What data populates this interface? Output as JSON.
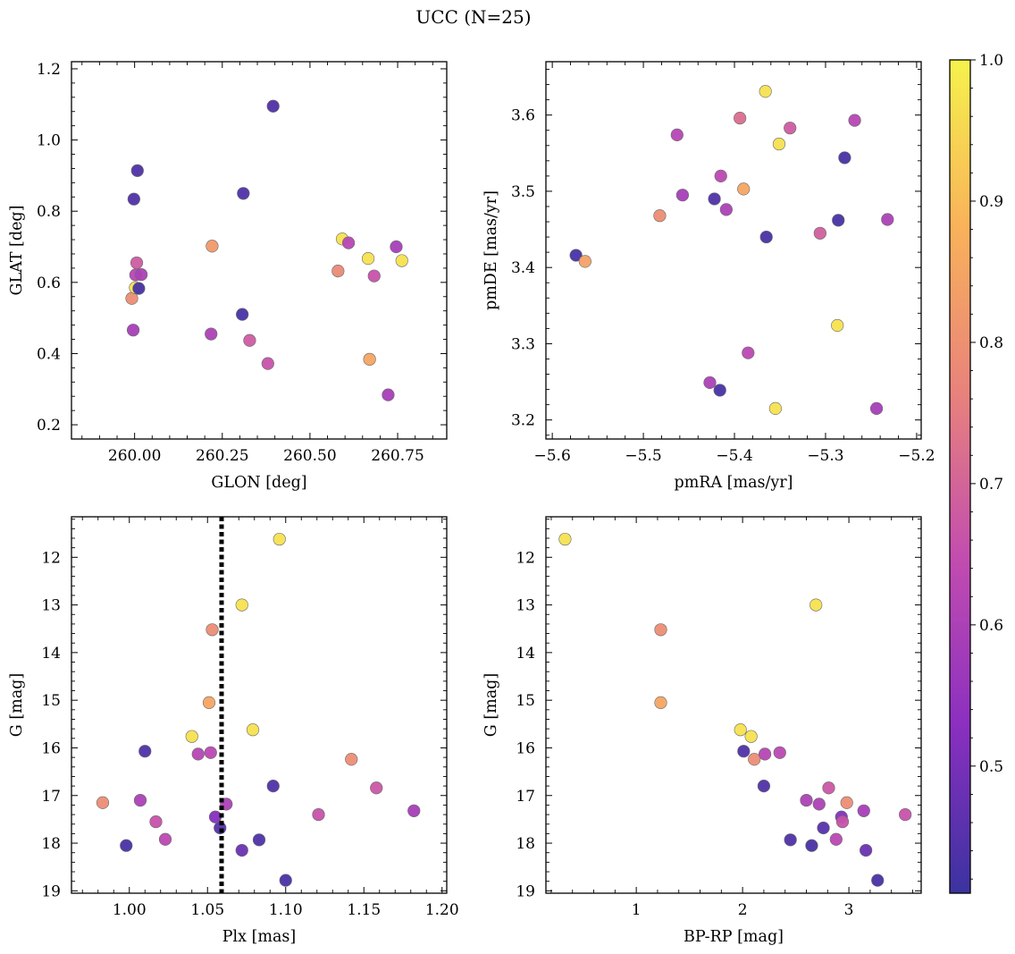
{
  "figure": {
    "title": "UCC (N=25)"
  },
  "colorbar": {
    "range": [
      0.41,
      1.0
    ],
    "ticks": [
      0.5,
      0.6,
      0.7,
      0.8,
      0.9,
      1.0
    ],
    "tick_labels": [
      "0.5",
      "0.6",
      "0.7",
      "0.8",
      "0.9",
      "1.0"
    ],
    "colormap": "plasma",
    "stops": [
      "#3b33a0",
      "#8a2fc0",
      "#c24cb0",
      "#e8827c",
      "#f9b25a",
      "#f5f24c"
    ]
  },
  "chart_data": [
    {
      "type": "scatter",
      "xlabel": "GLON [deg]",
      "ylabel": "GLAT [deg]",
      "xlim": [
        259.82,
        260.89
      ],
      "ylim": [
        0.16,
        1.22
      ],
      "y_inverted": false,
      "xticks": [
        260.0,
        260.25,
        260.5,
        260.75
      ],
      "xtick_labels": [
        "260.00",
        "260.25",
        "260.50",
        "260.75"
      ],
      "yticks": [
        0.2,
        0.4,
        0.6,
        0.8,
        1.0,
        1.2
      ],
      "ytick_labels": [
        "0.2",
        "0.4",
        "0.6",
        "0.8",
        "1.0",
        "1.2"
      ],
      "points": [
        {
          "x": 259.992,
          "y": 0.555,
          "c": 0.79
        },
        {
          "x": 259.996,
          "y": 0.466,
          "c": 0.59
        },
        {
          "x": 259.998,
          "y": 0.834,
          "c": 0.44
        },
        {
          "x": 260.002,
          "y": 0.585,
          "c": 0.97
        },
        {
          "x": 260.003,
          "y": 0.621,
          "c": 0.62
        },
        {
          "x": 260.006,
          "y": 0.655,
          "c": 0.68
        },
        {
          "x": 260.008,
          "y": 0.914,
          "c": 0.44
        },
        {
          "x": 260.012,
          "y": 0.583,
          "c": 0.43
        },
        {
          "x": 260.019,
          "y": 0.622,
          "c": 0.6
        },
        {
          "x": 260.218,
          "y": 0.455,
          "c": 0.6
        },
        {
          "x": 260.221,
          "y": 0.702,
          "c": 0.82
        },
        {
          "x": 260.307,
          "y": 0.51,
          "c": 0.43
        },
        {
          "x": 260.31,
          "y": 0.85,
          "c": 0.44
        },
        {
          "x": 260.328,
          "y": 0.437,
          "c": 0.68
        },
        {
          "x": 260.38,
          "y": 0.372,
          "c": 0.66
        },
        {
          "x": 260.395,
          "y": 1.095,
          "c": 0.44
        },
        {
          "x": 260.58,
          "y": 0.632,
          "c": 0.78
        },
        {
          "x": 260.592,
          "y": 0.722,
          "c": 0.97
        },
        {
          "x": 260.61,
          "y": 0.711,
          "c": 0.62
        },
        {
          "x": 260.666,
          "y": 0.667,
          "c": 0.97
        },
        {
          "x": 260.67,
          "y": 0.384,
          "c": 0.85
        },
        {
          "x": 260.683,
          "y": 0.618,
          "c": 0.66
        },
        {
          "x": 260.723,
          "y": 0.284,
          "c": 0.59
        },
        {
          "x": 260.746,
          "y": 0.7,
          "c": 0.59
        },
        {
          "x": 260.762,
          "y": 0.661,
          "c": 0.97
        }
      ]
    },
    {
      "type": "scatter",
      "xlabel": "pmRA [mas/yr]",
      "ylabel": "pmDE [mas/yr]",
      "xlim": [
        -5.607,
        -5.195
      ],
      "ylim": [
        3.175,
        3.67
      ],
      "y_inverted": false,
      "xticks": [
        -5.6,
        -5.5,
        -5.4,
        -5.3,
        -5.2
      ],
      "xtick_labels": [
        "−5.6",
        "−5.5",
        "−5.4",
        "−5.3",
        "−5.2"
      ],
      "yticks": [
        3.2,
        3.3,
        3.4,
        3.5,
        3.6
      ],
      "ytick_labels": [
        "3.2",
        "3.3",
        "3.4",
        "3.5",
        "3.6"
      ],
      "points": [
        {
          "x": -5.574,
          "y": 3.416,
          "c": 0.43
        },
        {
          "x": -5.564,
          "y": 3.408,
          "c": 0.84
        },
        {
          "x": -5.482,
          "y": 3.468,
          "c": 0.79
        },
        {
          "x": -5.463,
          "y": 3.574,
          "c": 0.62
        },
        {
          "x": -5.457,
          "y": 3.495,
          "c": 0.59
        },
        {
          "x": -5.427,
          "y": 3.249,
          "c": 0.6
        },
        {
          "x": -5.422,
          "y": 3.49,
          "c": 0.44
        },
        {
          "x": -5.415,
          "y": 3.52,
          "c": 0.63
        },
        {
          "x": -5.416,
          "y": 3.239,
          "c": 0.43
        },
        {
          "x": -5.409,
          "y": 3.476,
          "c": 0.6
        },
        {
          "x": -5.394,
          "y": 3.596,
          "c": 0.72
        },
        {
          "x": -5.39,
          "y": 3.503,
          "c": 0.85
        },
        {
          "x": -5.385,
          "y": 3.288,
          "c": 0.63
        },
        {
          "x": -5.366,
          "y": 3.631,
          "c": 0.97
        },
        {
          "x": -5.365,
          "y": 3.44,
          "c": 0.43
        },
        {
          "x": -5.355,
          "y": 3.215,
          "c": 0.97
        },
        {
          "x": -5.351,
          "y": 3.562,
          "c": 0.97
        },
        {
          "x": -5.339,
          "y": 3.583,
          "c": 0.68
        },
        {
          "x": -5.306,
          "y": 3.445,
          "c": 0.69
        },
        {
          "x": -5.287,
          "y": 3.324,
          "c": 0.97
        },
        {
          "x": -5.286,
          "y": 3.462,
          "c": 0.43
        },
        {
          "x": -5.279,
          "y": 3.544,
          "c": 0.43
        },
        {
          "x": -5.268,
          "y": 3.593,
          "c": 0.62
        },
        {
          "x": -5.244,
          "y": 3.215,
          "c": 0.59
        },
        {
          "x": -5.232,
          "y": 3.463,
          "c": 0.6
        }
      ]
    },
    {
      "type": "scatter",
      "xlabel": "Plx [mas]",
      "ylabel": "G [mag]",
      "xlim": [
        0.963,
        1.203
      ],
      "ylim": [
        11.15,
        19.05
      ],
      "y_inverted": true,
      "xticks": [
        1.0,
        1.05,
        1.1,
        1.15,
        1.2
      ],
      "xtick_labels": [
        "1.00",
        "1.05",
        "1.10",
        "1.15",
        "1.20"
      ],
      "yticks": [
        12,
        13,
        14,
        15,
        16,
        17,
        18,
        19
      ],
      "ytick_labels": [
        "12",
        "13",
        "14",
        "15",
        "16",
        "17",
        "18",
        "19"
      ],
      "vline": {
        "x": 1.059,
        "style": "dotted"
      },
      "points": [
        {
          "x": 0.983,
          "y": 17.15,
          "c": 0.79
        },
        {
          "x": 0.998,
          "y": 18.05,
          "c": 0.43
        },
        {
          "x": 1.007,
          "y": 17.1,
          "c": 0.6
        },
        {
          "x": 1.01,
          "y": 16.07,
          "c": 0.44
        },
        {
          "x": 1.017,
          "y": 17.55,
          "c": 0.66
        },
        {
          "x": 1.023,
          "y": 17.92,
          "c": 0.63
        },
        {
          "x": 1.04,
          "y": 15.76,
          "c": 0.97
        },
        {
          "x": 1.044,
          "y": 16.13,
          "c": 0.62
        },
        {
          "x": 1.051,
          "y": 15.05,
          "c": 0.85
        },
        {
          "x": 1.052,
          "y": 16.1,
          "c": 0.63
        },
        {
          "x": 1.053,
          "y": 13.52,
          "c": 0.79
        },
        {
          "x": 1.055,
          "y": 17.45,
          "c": 0.52
        },
        {
          "x": 1.058,
          "y": 17.68,
          "c": 0.45
        },
        {
          "x": 1.062,
          "y": 17.18,
          "c": 0.6
        },
        {
          "x": 1.072,
          "y": 13.0,
          "c": 0.97
        },
        {
          "x": 1.072,
          "y": 18.15,
          "c": 0.48
        },
        {
          "x": 1.079,
          "y": 15.62,
          "c": 0.97
        },
        {
          "x": 1.083,
          "y": 17.93,
          "c": 0.44
        },
        {
          "x": 1.092,
          "y": 16.8,
          "c": 0.44
        },
        {
          "x": 1.096,
          "y": 11.62,
          "c": 0.97
        },
        {
          "x": 1.1,
          "y": 18.78,
          "c": 0.43
        },
        {
          "x": 1.121,
          "y": 17.4,
          "c": 0.66
        },
        {
          "x": 1.142,
          "y": 16.24,
          "c": 0.79
        },
        {
          "x": 1.158,
          "y": 16.84,
          "c": 0.67
        },
        {
          "x": 1.182,
          "y": 17.32,
          "c": 0.59
        }
      ]
    },
    {
      "type": "scatter",
      "xlabel": "BP-RP [mag]",
      "ylabel": "G [mag]",
      "xlim": [
        0.15,
        3.68
      ],
      "ylim": [
        11.15,
        19.05
      ],
      "y_inverted": true,
      "xticks": [
        1,
        2,
        3
      ],
      "xtick_labels": [
        "1",
        "2",
        "3"
      ],
      "yticks": [
        12,
        13,
        14,
        15,
        16,
        17,
        18,
        19
      ],
      "ytick_labels": [
        "12",
        "13",
        "14",
        "15",
        "16",
        "17",
        "18",
        "19"
      ],
      "points": [
        {
          "x": 0.33,
          "y": 11.62,
          "c": 0.97
        },
        {
          "x": 1.23,
          "y": 13.52,
          "c": 0.79
        },
        {
          "x": 1.23,
          "y": 15.05,
          "c": 0.85
        },
        {
          "x": 1.98,
          "y": 15.62,
          "c": 0.97
        },
        {
          "x": 2.01,
          "y": 16.07,
          "c": 0.44
        },
        {
          "x": 2.08,
          "y": 15.76,
          "c": 0.97
        },
        {
          "x": 2.11,
          "y": 16.24,
          "c": 0.79
        },
        {
          "x": 2.2,
          "y": 16.8,
          "c": 0.44
        },
        {
          "x": 2.21,
          "y": 16.13,
          "c": 0.62
        },
        {
          "x": 2.35,
          "y": 16.1,
          "c": 0.63
        },
        {
          "x": 2.45,
          "y": 17.93,
          "c": 0.44
        },
        {
          "x": 2.6,
          "y": 17.1,
          "c": 0.6
        },
        {
          "x": 2.65,
          "y": 18.05,
          "c": 0.43
        },
        {
          "x": 2.69,
          "y": 13.0,
          "c": 0.97
        },
        {
          "x": 2.72,
          "y": 17.18,
          "c": 0.6
        },
        {
          "x": 2.76,
          "y": 17.68,
          "c": 0.45
        },
        {
          "x": 2.81,
          "y": 16.84,
          "c": 0.67
        },
        {
          "x": 2.88,
          "y": 17.92,
          "c": 0.63
        },
        {
          "x": 2.93,
          "y": 17.45,
          "c": 0.52
        },
        {
          "x": 2.94,
          "y": 17.55,
          "c": 0.66
        },
        {
          "x": 2.98,
          "y": 17.15,
          "c": 0.79
        },
        {
          "x": 3.14,
          "y": 17.32,
          "c": 0.59
        },
        {
          "x": 3.16,
          "y": 18.15,
          "c": 0.48
        },
        {
          "x": 3.27,
          "y": 18.78,
          "c": 0.43
        },
        {
          "x": 3.53,
          "y": 17.4,
          "c": 0.66
        }
      ]
    }
  ]
}
